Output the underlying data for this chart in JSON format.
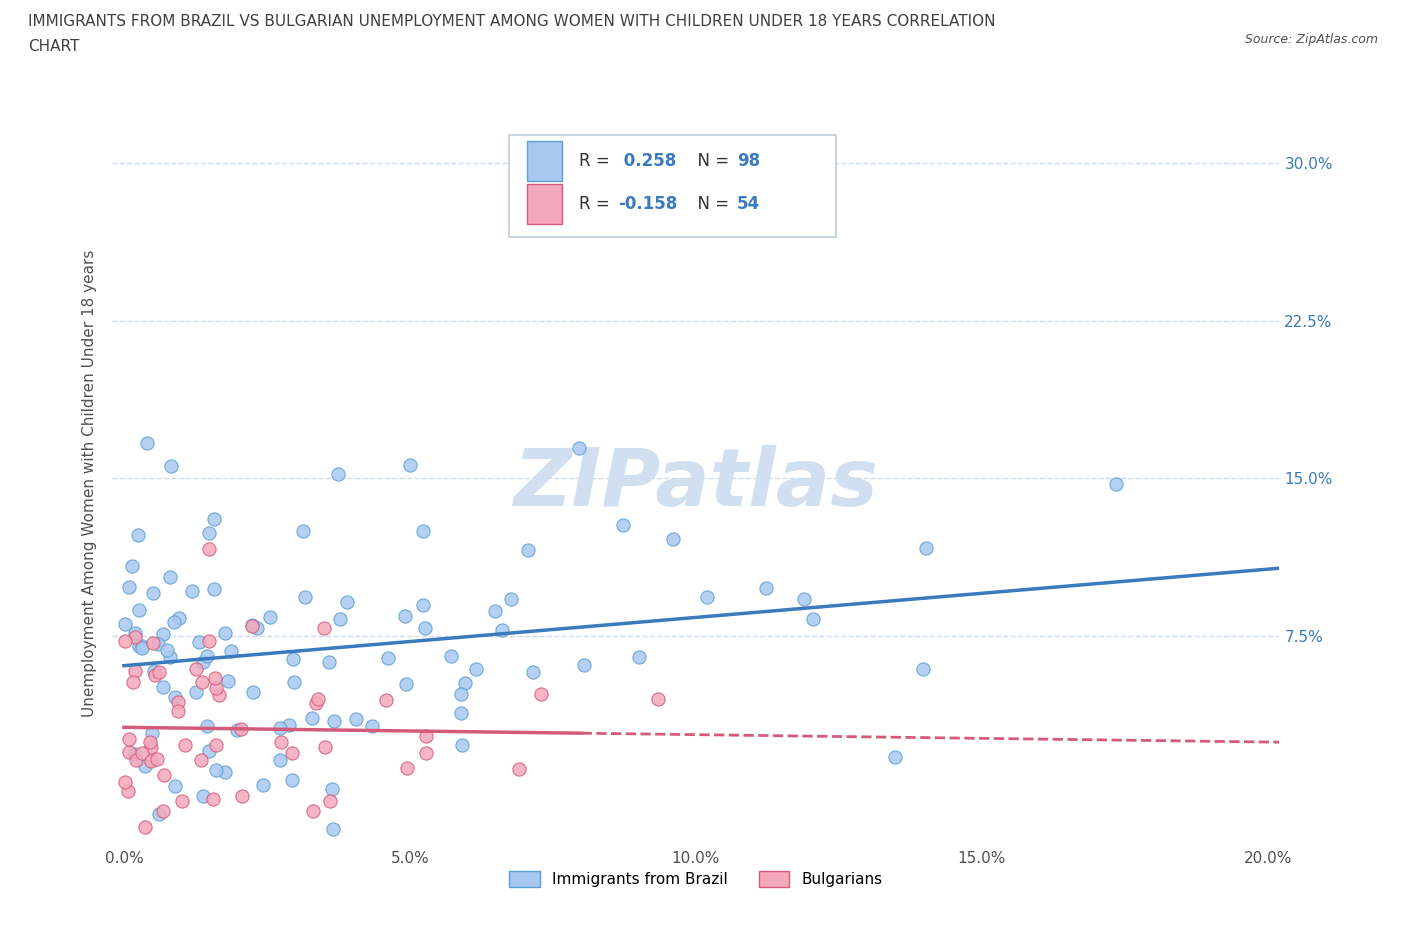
{
  "title_line1": "IMMIGRANTS FROM BRAZIL VS BULGARIAN UNEMPLOYMENT AMONG WOMEN WITH CHILDREN UNDER 18 YEARS CORRELATION",
  "title_line2": "CHART",
  "source": "Source: ZipAtlas.com",
  "ylabel": "Unemployment Among Women with Children Under 18 years",
  "xlim": [
    -0.002,
    0.202
  ],
  "ylim": [
    -0.025,
    0.32
  ],
  "yticks": [
    0.0,
    0.075,
    0.15,
    0.225,
    0.3
  ],
  "ytick_labels": [
    "",
    "7.5%",
    "15.0%",
    "22.5%",
    "30.0%"
  ],
  "xticks": [
    0.0,
    0.05,
    0.1,
    0.15,
    0.2
  ],
  "xtick_labels": [
    "0.0%",
    "5.0%",
    "10.0%",
    "15.0%",
    "20.0%"
  ],
  "series1_color": "#a8c8f0",
  "series1_edge": "#5a9fd4",
  "series2_color": "#f4a8bc",
  "series2_edge": "#d45a7a",
  "trend1_color": "#3a7abf",
  "trend2_color": "#d45a7a",
  "R1": 0.258,
  "N1": 98,
  "R2": -0.158,
  "N2": 54,
  "watermark": "ZIPatlas",
  "watermark_color": "#ccddf0",
  "background_color": "#ffffff",
  "grid_color": "#d0dce8",
  "title_color": "#404040",
  "axis_color": "#505050",
  "right_tick_color": "#3a7abf",
  "legend_label1": "Immigrants from Brazil",
  "legend_label2": "Bulgarians",
  "seed": 42
}
